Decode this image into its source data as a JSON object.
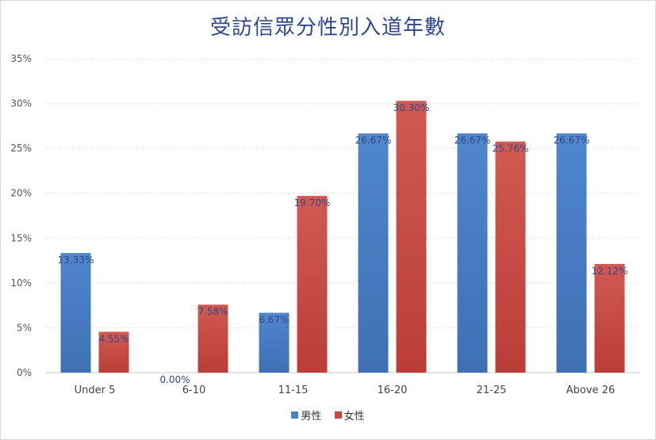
{
  "chart_data": {
    "type": "bar",
    "title": "受訪信眾分性別入道年數",
    "categories": [
      "Under 5",
      "6-10",
      "11-15",
      "16-20",
      "21-25",
      "Above 26"
    ],
    "series": [
      {
        "name": "男性",
        "color": "#4a7fc4",
        "values": [
          13.33,
          0.0,
          6.67,
          26.67,
          26.67,
          26.67
        ],
        "labels": [
          "13.33%",
          "0.00%",
          "6.67%",
          "26.67%",
          "26.67%",
          "26.67%"
        ]
      },
      {
        "name": "女性",
        "color": "#c9463f",
        "values": [
          4.55,
          7.58,
          19.7,
          30.3,
          25.76,
          12.12
        ],
        "labels": [
          "4.55%",
          "7.58%",
          "19.70%",
          "30.30%",
          "25.76%",
          "12.12%"
        ]
      }
    ],
    "ylim": [
      0,
      35
    ],
    "yticks": [
      "0%",
      "5%",
      "10%",
      "15%",
      "20%",
      "25%",
      "30%",
      "35%"
    ],
    "ytick_values": [
      0,
      5,
      10,
      15,
      20,
      25,
      30,
      35
    ],
    "xlabel": "",
    "ylabel": "",
    "grid": true,
    "legend_position": "bottom"
  }
}
